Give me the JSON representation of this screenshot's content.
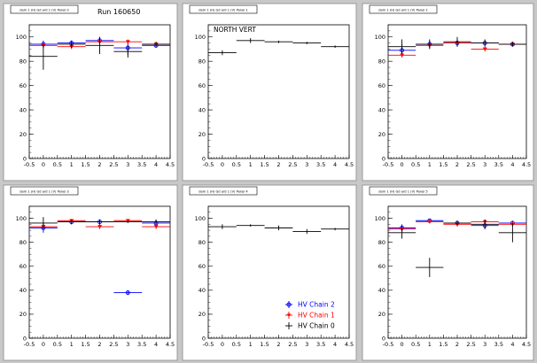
{
  "run_label": "Run 160650",
  "legend": [
    {
      "name": "HV Chain 2",
      "color": "#0000ff",
      "marker": "circle"
    },
    {
      "name": "HV Chain 1",
      "color": "#ff0000",
      "marker": "triangle"
    },
    {
      "name": "HV Chain 0",
      "color": "#000000",
      "marker": "cross"
    }
  ],
  "chart_data": [
    {
      "type": "scatter",
      "title": "dam 1 (H) Gd ard 1 (V) Panel 0",
      "annotation": "",
      "xlim": [
        -0.5,
        4.5
      ],
      "ylim": [
        0,
        110
      ],
      "xticks": [
        -0.5,
        0,
        0.5,
        1,
        1.5,
        2,
        2.5,
        3,
        3.5,
        4,
        4.5
      ],
      "xtick_labels": [
        "-0.5",
        "0",
        "0.5",
        "1",
        "1.5",
        "2",
        "2.5",
        "3",
        "3.5",
        "4",
        "4.5"
      ],
      "yticks": [
        0,
        20,
        40,
        60,
        80,
        100
      ],
      "ytick_labels": [
        "0",
        "20",
        "40",
        "60",
        "80",
        "100"
      ],
      "series": [
        {
          "name": "HV Chain 2",
          "color": "#0000ff",
          "marker": "circle",
          "points": [
            {
              "x": 0,
              "y": 94,
              "err": 3
            },
            {
              "x": 1,
              "y": 95,
              "err": 2
            },
            {
              "x": 2,
              "y": 97,
              "err": 3
            },
            {
              "x": 3,
              "y": 91,
              "err": 6
            },
            {
              "x": 4,
              "y": 93,
              "err": 2
            }
          ]
        },
        {
          "name": "HV Chain 1",
          "color": "#ff0000",
          "marker": "triangle",
          "points": [
            {
              "x": 0,
              "y": 93,
              "err": 2
            },
            {
              "x": 1,
              "y": 92,
              "err": 2
            },
            {
              "x": 2,
              "y": 96,
              "err": 2
            },
            {
              "x": 3,
              "y": 96,
              "err": 2
            },
            {
              "x": 4,
              "y": 94,
              "err": 2
            }
          ]
        },
        {
          "name": "HV Chain 0",
          "color": "#000000",
          "marker": "cross",
          "points": [
            {
              "x": 0,
              "y": 84,
              "err": 11
            },
            {
              "x": 1,
              "y": 94,
              "err": 3
            },
            {
              "x": 2,
              "y": 93,
              "err": 7
            },
            {
              "x": 3,
              "y": 88,
              "err": 5
            },
            {
              "x": 4,
              "y": 94,
              "err": 2
            }
          ]
        }
      ]
    },
    {
      "type": "scatter",
      "title": "dam 1 (H) Gd ard 1 (V) Panel 1",
      "annotation": "NORTH VERT",
      "xlim": [
        -0.5,
        4.5
      ],
      "ylim": [
        0,
        110
      ],
      "xticks": [
        -0.5,
        0,
        0.5,
        1,
        1.5,
        2,
        2.5,
        3,
        3.5,
        4,
        4.5
      ],
      "xtick_labels": [
        "-0.5",
        "0",
        "0.5",
        "1",
        "1.5",
        "2",
        "2.5",
        "3",
        "3.5",
        "4",
        "4.5"
      ],
      "yticks": [
        0,
        20,
        40,
        60,
        80,
        100
      ],
      "ytick_labels": [
        "0",
        "20",
        "40",
        "60",
        "80",
        "100"
      ],
      "series": [
        {
          "name": "HV Chain 0",
          "color": "#000000",
          "marker": "cross",
          "points": [
            {
              "x": 0,
              "y": 87,
              "err": 2
            },
            {
              "x": 1,
              "y": 97,
              "err": 2
            },
            {
              "x": 2,
              "y": 96,
              "err": 1
            },
            {
              "x": 3,
              "y": 95,
              "err": 1
            },
            {
              "x": 4,
              "y": 92,
              "err": 1
            }
          ]
        }
      ]
    },
    {
      "type": "scatter",
      "title": "dam 1 (H) Gd ard 1 (V) Panel 2",
      "annotation": "",
      "xlim": [
        -0.5,
        4.5
      ],
      "ylim": [
        0,
        110
      ],
      "xticks": [
        -0.5,
        0,
        0.5,
        1,
        1.5,
        2,
        2.5,
        3,
        3.5,
        4,
        4.5
      ],
      "xtick_labels": [
        "-0.5",
        "0",
        "0.5",
        "1",
        "1.5",
        "2",
        "2.5",
        "3",
        "3.5",
        "4",
        "4.5"
      ],
      "yticks": [
        0,
        20,
        40,
        60,
        80,
        100
      ],
      "ytick_labels": [
        "0",
        "20",
        "40",
        "60",
        "80",
        "100"
      ],
      "series": [
        {
          "name": "HV Chain 2",
          "color": "#0000ff",
          "marker": "circle",
          "points": [
            {
              "x": 0,
              "y": 89,
              "err": 5
            },
            {
              "x": 1,
              "y": 94,
              "err": 3
            },
            {
              "x": 2,
              "y": 95,
              "err": 3
            },
            {
              "x": 3,
              "y": 95,
              "err": 2
            },
            {
              "x": 4,
              "y": 94,
              "err": 2
            }
          ]
        },
        {
          "name": "HV Chain 1",
          "color": "#ff0000",
          "marker": "triangle",
          "points": [
            {
              "x": 0,
              "y": 85,
              "err": 2
            },
            {
              "x": 1,
              "y": 93,
              "err": 2
            },
            {
              "x": 2,
              "y": 95,
              "err": 2
            },
            {
              "x": 3,
              "y": 90,
              "err": 2
            },
            {
              "x": 4,
              "y": 94,
              "err": 1
            }
          ]
        },
        {
          "name": "HV Chain 0",
          "color": "#000000",
          "marker": "cross",
          "points": [
            {
              "x": 0,
              "y": 92,
              "err": 6
            },
            {
              "x": 1,
              "y": 94,
              "err": 4
            },
            {
              "x": 2,
              "y": 96,
              "err": 4
            },
            {
              "x": 3,
              "y": 95,
              "err": 3
            },
            {
              "x": 4,
              "y": 94,
              "err": 2
            }
          ]
        }
      ]
    },
    {
      "type": "scatter",
      "title": "dam 1 (H) Gd ard 1 (V) Panel 3",
      "annotation": "",
      "xlim": [
        -0.5,
        4.5
      ],
      "ylim": [
        0,
        110
      ],
      "xticks": [
        -0.5,
        0,
        0.5,
        1,
        1.5,
        2,
        2.5,
        3,
        3.5,
        4,
        4.5
      ],
      "xtick_labels": [
        "-0.5",
        "0",
        "0.5",
        "1",
        "1.5",
        "2",
        "2.5",
        "3",
        "3.5",
        "4",
        "4.5"
      ],
      "yticks": [
        0,
        20,
        40,
        60,
        80,
        100
      ],
      "ytick_labels": [
        "0",
        "20",
        "40",
        "60",
        "80",
        "100"
      ],
      "series": [
        {
          "name": "HV Chain 2",
          "color": "#0000ff",
          "marker": "circle",
          "points": [
            {
              "x": 0,
              "y": 92,
              "err": 4
            },
            {
              "x": 1,
              "y": 97,
              "err": 2
            },
            {
              "x": 2,
              "y": 97,
              "err": 2
            },
            {
              "x": 3,
              "y": 38,
              "err": 2
            },
            {
              "x": 4,
              "y": 96,
              "err": 3
            }
          ]
        },
        {
          "name": "HV Chain 1",
          "color": "#ff0000",
          "marker": "triangle",
          "points": [
            {
              "x": 0,
              "y": 93,
              "err": 2
            },
            {
              "x": 1,
              "y": 98,
              "err": 1
            },
            {
              "x": 2,
              "y": 93,
              "err": 2
            },
            {
              "x": 3,
              "y": 98,
              "err": 1
            },
            {
              "x": 4,
              "y": 93,
              "err": 2
            }
          ]
        },
        {
          "name": "HV Chain 0",
          "color": "#000000",
          "marker": "cross",
          "points": [
            {
              "x": 0,
              "y": 96,
              "err": 5
            },
            {
              "x": 1,
              "y": 97,
              "err": 2
            },
            {
              "x": 2,
              "y": 97,
              "err": 2
            },
            {
              "x": 3,
              "y": 97,
              "err": 1
            },
            {
              "x": 4,
              "y": 97,
              "err": 2
            }
          ]
        }
      ]
    },
    {
      "type": "scatter",
      "title": "dam 1 (H) Gd ard 1 (V) Panel 4",
      "annotation": "",
      "xlim": [
        -0.5,
        4.5
      ],
      "ylim": [
        0,
        110
      ],
      "xticks": [
        -0.5,
        0,
        0.5,
        1,
        1.5,
        2,
        2.5,
        3,
        3.5,
        4,
        4.5
      ],
      "xtick_labels": [
        "-0.5",
        "0",
        "0.5",
        "1",
        "1.5",
        "2",
        "2.5",
        "3",
        "3.5",
        "4",
        "4.5"
      ],
      "yticks": [
        0,
        20,
        40,
        60,
        80,
        100
      ],
      "ytick_labels": [
        "0",
        "20",
        "40",
        "60",
        "80",
        "100"
      ],
      "legend_position": "bottom-right",
      "series": [
        {
          "name": "HV Chain 0",
          "color": "#000000",
          "marker": "cross",
          "points": [
            {
              "x": 0,
              "y": 93,
              "err": 2
            },
            {
              "x": 1,
              "y": 94,
              "err": 1
            },
            {
              "x": 2,
              "y": 92,
              "err": 2
            },
            {
              "x": 3,
              "y": 89,
              "err": 2
            },
            {
              "x": 4,
              "y": 91,
              "err": 1
            }
          ]
        }
      ]
    },
    {
      "type": "scatter",
      "title": "dam 1 (H) Gd ard 1 (V) Panel 5",
      "annotation": "",
      "xlim": [
        -0.5,
        4.5
      ],
      "ylim": [
        0,
        110
      ],
      "xticks": [
        -0.5,
        0,
        0.5,
        1,
        1.5,
        2,
        2.5,
        3,
        3.5,
        4,
        4.5
      ],
      "xtick_labels": [
        "-0.5",
        "0",
        "0.5",
        "1",
        "1.5",
        "2",
        "2.5",
        "3",
        "3.5",
        "4",
        "4.5"
      ],
      "yticks": [
        0,
        20,
        40,
        60,
        80,
        100
      ],
      "ytick_labels": [
        "0",
        "20",
        "40",
        "60",
        "80",
        "100"
      ],
      "series": [
        {
          "name": "HV Chain 2",
          "color": "#0000ff",
          "marker": "circle",
          "points": [
            {
              "x": 0,
              "y": 92,
              "err": 3
            },
            {
              "x": 1,
              "y": 98,
              "err": 1
            },
            {
              "x": 2,
              "y": 96,
              "err": 2
            },
            {
              "x": 3,
              "y": 94,
              "err": 3
            },
            {
              "x": 4,
              "y": 96,
              "err": 2
            }
          ]
        },
        {
          "name": "HV Chain 1",
          "color": "#ff0000",
          "marker": "triangle",
          "points": [
            {
              "x": 0,
              "y": 91,
              "err": 2
            },
            {
              "x": 1,
              "y": 97,
              "err": 1
            },
            {
              "x": 2,
              "y": 95,
              "err": 2
            },
            {
              "x": 3,
              "y": 97,
              "err": 2
            },
            {
              "x": 4,
              "y": 95,
              "err": 2
            }
          ]
        },
        {
          "name": "HV Chain 0",
          "color": "#000000",
          "marker": "cross",
          "points": [
            {
              "x": 0,
              "y": 88,
              "err": 5
            },
            {
              "x": 1,
              "y": 59,
              "err": 8
            },
            {
              "x": 2,
              "y": 96,
              "err": 2
            },
            {
              "x": 3,
              "y": 95,
              "err": 4
            },
            {
              "x": 4,
              "y": 88,
              "err": 8
            }
          ]
        }
      ]
    }
  ]
}
